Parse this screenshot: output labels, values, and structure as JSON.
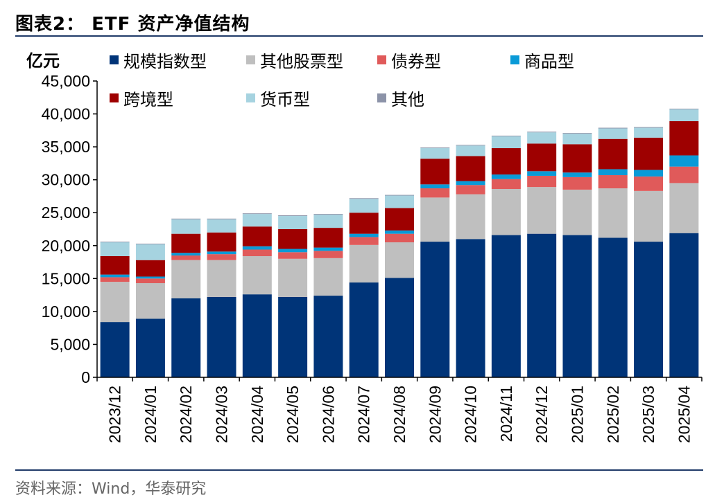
{
  "header": {
    "title": "图表2： ETF 资产净值结构"
  },
  "footer": {
    "source": "资料来源：Wind，华泰研究"
  },
  "chart_data": {
    "type": "bar",
    "stacked": true,
    "ylabel": "亿元",
    "ylim": [
      0,
      45000
    ],
    "yticks": [
      "0",
      "5,000",
      "10,000",
      "15,000",
      "20,000",
      "25,000",
      "30,000",
      "35,000",
      "40,000",
      "45,000"
    ],
    "categories": [
      "2023/12",
      "2024/01",
      "2024/02",
      "2024/03",
      "2024/04",
      "2024/05",
      "2024/06",
      "2024/07",
      "2024/08",
      "2024/09",
      "2024/10",
      "2024/11",
      "2024/12",
      "2025/01",
      "2025/02",
      "2025/03",
      "2025/04"
    ],
    "legend_position": "top",
    "series": [
      {
        "name": "规模指数型",
        "color": "#003478",
        "values": [
          8400,
          8900,
          12000,
          12200,
          12600,
          12200,
          12400,
          14400,
          15100,
          20600,
          21000,
          21600,
          21800,
          21600,
          21200,
          20600,
          21900
        ]
      },
      {
        "name": "其他股票型",
        "color": "#bfbfbf",
        "values": [
          6100,
          5400,
          5800,
          5600,
          5800,
          5800,
          5700,
          5700,
          5400,
          6700,
          6800,
          7000,
          7100,
          6900,
          7500,
          7700,
          7600
        ]
      },
      {
        "name": "债券型",
        "color": "#e05a5a",
        "values": [
          700,
          700,
          700,
          900,
          1000,
          1000,
          1100,
          1200,
          1300,
          1400,
          1400,
          1500,
          1700,
          1900,
          2000,
          2200,
          2500
        ]
      },
      {
        "name": "商品型",
        "color": "#0a9ad7",
        "values": [
          400,
          300,
          400,
          400,
          500,
          500,
          500,
          500,
          500,
          600,
          600,
          700,
          700,
          700,
          900,
          1000,
          1700
        ]
      },
      {
        "name": "跨境型",
        "color": "#9e0000",
        "values": [
          2800,
          2500,
          2900,
          2900,
          3000,
          3000,
          3000,
          3200,
          3400,
          3900,
          3800,
          4000,
          4200,
          4300,
          4600,
          4900,
          5200
        ]
      },
      {
        "name": "货币型",
        "color": "#a6d3e0",
        "values": [
          2100,
          2400,
          2200,
          2000,
          1900,
          2000,
          2000,
          2100,
          1900,
          1600,
          1600,
          1800,
          1700,
          1600,
          1600,
          1500,
          1800
        ]
      },
      {
        "name": "其他",
        "color": "#8c93a8",
        "values": [
          100,
          100,
          100,
          100,
          100,
          100,
          100,
          100,
          100,
          100,
          100,
          100,
          100,
          100,
          100,
          100,
          100
        ]
      }
    ]
  }
}
